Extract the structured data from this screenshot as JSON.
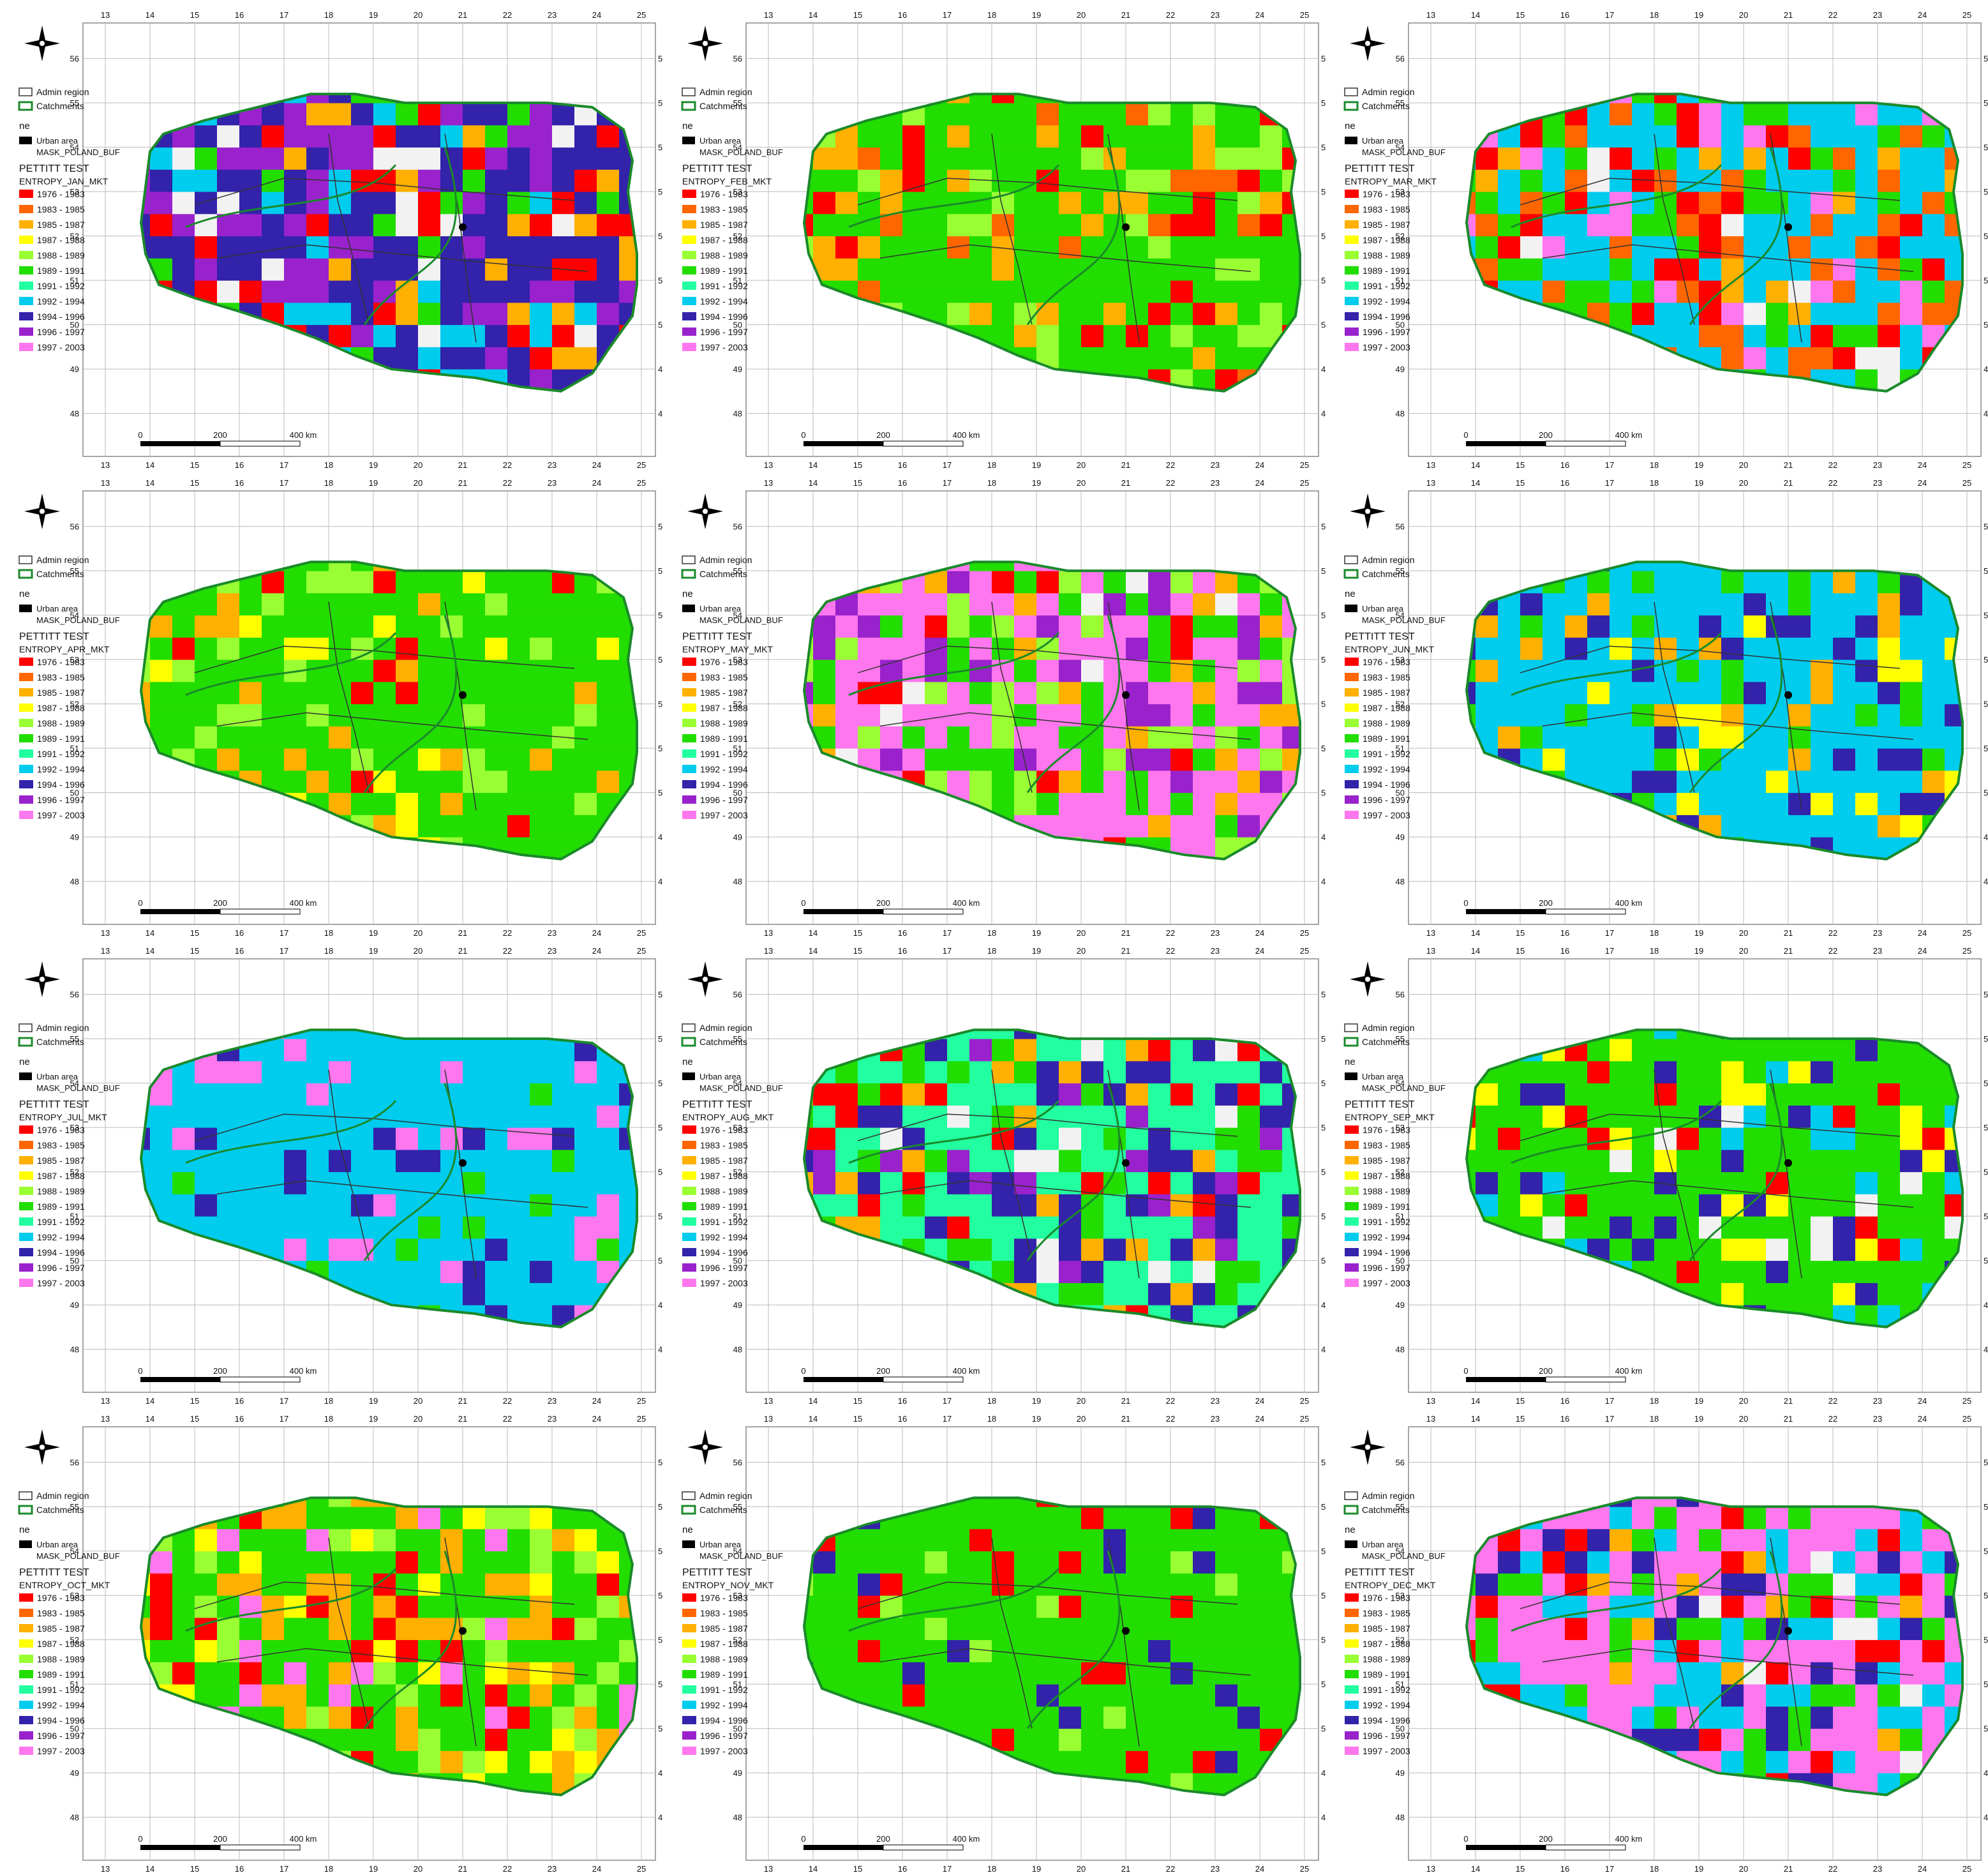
{
  "legend": {
    "admin_region": "Admin region",
    "catchments": "Catchments",
    "ne": "ne",
    "urban_area": "Urban area",
    "mask": "MASK_POLAND_BUF",
    "test_title": "PETTITT TEST",
    "classes": [
      {
        "label": "1976 - 1983",
        "color": "#ff0000"
      },
      {
        "label": "1983 - 1985",
        "color": "#ff6600"
      },
      {
        "label": "1985 - 1987",
        "color": "#ffb000"
      },
      {
        "label": "1987 - 1988",
        "color": "#ffff00"
      },
      {
        "label": "1988 - 1989",
        "color": "#99ff33"
      },
      {
        "label": "1989 - 1991",
        "color": "#22dd00"
      },
      {
        "label": "1991 - 1992",
        "color": "#22ffa0"
      },
      {
        "label": "1992 - 1994",
        "color": "#00ccee"
      },
      {
        "label": "1994 - 1996",
        "color": "#3322aa"
      },
      {
        "label": "1996 - 1997",
        "color": "#9922cc"
      },
      {
        "label": "1997 - 2003",
        "color": "#ff77ee"
      }
    ]
  },
  "axes": {
    "lon_ticks": [
      "13",
      "14",
      "15",
      "16",
      "17",
      "18",
      "19",
      "20",
      "21",
      "22",
      "23",
      "24",
      "25"
    ],
    "lat_ticks": [
      "56",
      "55",
      "54",
      "53",
      "52",
      "51",
      "50",
      "49",
      "48"
    ]
  },
  "scalebar": {
    "zero": "0",
    "mid": "200",
    "end": "400 km"
  },
  "colors": {
    "catchment": "#1a8a2a",
    "admin": "#333333",
    "graticule": "#bbbbbb",
    "frame": "#888888"
  },
  "maps": [
    {
      "variable": "ENTROPY_JAN_MKT",
      "palette": [
        8,
        9,
        0,
        7,
        2,
        5
      ],
      "cover": 2
    },
    {
      "variable": "ENTROPY_FEB_MKT",
      "palette": [
        5,
        5,
        4,
        2,
        1,
        0
      ],
      "cover": 0
    },
    {
      "variable": "ENTROPY_MAR_MKT",
      "palette": [
        7,
        5,
        1,
        0,
        10,
        2
      ],
      "cover": 1
    },
    {
      "variable": "ENTROPY_APR_MKT",
      "palette": [
        5,
        5,
        4,
        2,
        3,
        0
      ],
      "cover": 0
    },
    {
      "variable": "ENTROPY_MAY_MKT",
      "palette": [
        10,
        5,
        4,
        9,
        2,
        0
      ],
      "cover": 1
    },
    {
      "variable": "ENTROPY_JUN_MKT",
      "palette": [
        7,
        7,
        8,
        5,
        2,
        3
      ],
      "cover": 0
    },
    {
      "variable": "ENTROPY_JUL_MKT",
      "palette": [
        7,
        7,
        7,
        8,
        10,
        5
      ],
      "cover": 0
    },
    {
      "variable": "ENTROPY_AUG_MKT",
      "palette": [
        6,
        8,
        5,
        2,
        0,
        9
      ],
      "cover": 1
    },
    {
      "variable": "ENTROPY_SEP_MKT",
      "palette": [
        5,
        5,
        8,
        0,
        7,
        3
      ],
      "cover": 1
    },
    {
      "variable": "ENTROPY_OCT_MKT",
      "palette": [
        5,
        2,
        4,
        3,
        0,
        10
      ],
      "cover": 0
    },
    {
      "variable": "ENTROPY_NOV_MKT",
      "palette": [
        5,
        5,
        5,
        4,
        0,
        8
      ],
      "cover": 0
    },
    {
      "variable": "ENTROPY_DEC_MKT",
      "palette": [
        10,
        7,
        8,
        5,
        0,
        2
      ],
      "cover": 1
    }
  ]
}
